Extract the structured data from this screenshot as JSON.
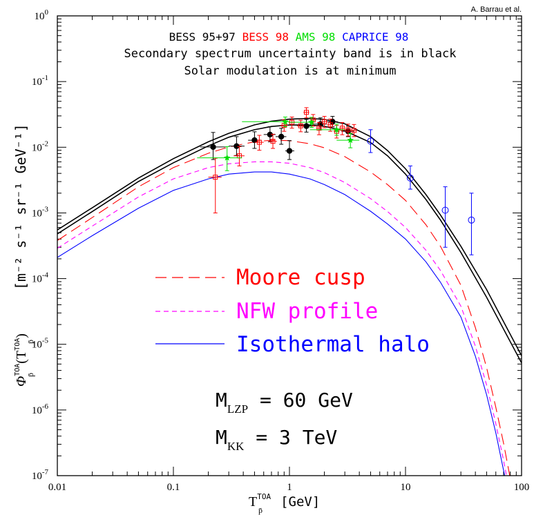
{
  "credit": "A. Barrau et al.",
  "chart_data": {
    "type": "line",
    "xscale": "log",
    "yscale": "log",
    "xlim": [
      0.01,
      100
    ],
    "ylim": [
      1e-07,
      1
    ],
    "x_ticks": [
      {
        "value": 0.01,
        "label": "0.01"
      },
      {
        "value": 0.1,
        "label": "0.1"
      },
      {
        "value": 1,
        "label": "1"
      },
      {
        "value": 10,
        "label": "10"
      },
      {
        "value": 100,
        "label": "100"
      }
    ],
    "y_ticks": [
      {
        "value": 1,
        "mant": "10",
        "exp": "0"
      },
      {
        "value": 0.1,
        "mant": "10",
        "exp": "-1"
      },
      {
        "value": 0.01,
        "mant": "10",
        "exp": "-2"
      },
      {
        "value": 0.001,
        "mant": "10",
        "exp": "-3"
      },
      {
        "value": 0.0001,
        "mant": "10",
        "exp": "-4"
      },
      {
        "value": 1e-05,
        "mant": "10",
        "exp": "-5"
      },
      {
        "value": 1e-06,
        "mant": "10",
        "exp": "-6"
      },
      {
        "value": 1e-07,
        "mant": "10",
        "exp": "-7"
      }
    ],
    "xlabel": {
      "main": "T",
      "sub": "p̄",
      "sup": "TOA",
      "unit": "[GeV]"
    },
    "ylabel": {
      "phi": "Φ",
      "sub": "p̄",
      "sup": "TOA",
      "arg": "(T",
      "arg_sub": "p̄",
      "arg_sup": "TOA",
      "arg_close": ")",
      "unit": "[m⁻² s⁻¹ sr⁻¹ GeV⁻¹]"
    },
    "experiments": [
      {
        "name": "BESS 95+97",
        "color": "#000000"
      },
      {
        "name": "BESS 98",
        "color": "#ff0000"
      },
      {
        "name": "AMS 98",
        "color": "#00dd00"
      },
      {
        "name": "CAPRICE 98",
        "color": "#0000ff"
      }
    ],
    "notes": [
      "Secondary spectrum uncertainty band is in black",
      "Solar modulation is at minimum"
    ],
    "series": [
      {
        "name": "Moore cusp",
        "color": "#ff0000",
        "dash": "long",
        "x": [
          0.01,
          0.02,
          0.05,
          0.1,
          0.2,
          0.3,
          0.5,
          0.7,
          1.0,
          1.5,
          2.0,
          3.0,
          5.0,
          7.0,
          10,
          15,
          20,
          30,
          40,
          50,
          60,
          70,
          80
        ],
        "y": [
          0.00038,
          0.00085,
          0.0025,
          0.0049,
          0.0081,
          0.0101,
          0.0121,
          0.0128,
          0.0126,
          0.0113,
          0.0098,
          0.0072,
          0.0042,
          0.0027,
          0.00155,
          0.00066,
          0.00031,
          7.9e-05,
          1.8e-05,
          4.4e-06,
          1.1e-06,
          3.1e-07,
          9e-08
        ]
      },
      {
        "name": "NFW profile",
        "color": "#ff00ff",
        "dash": "short",
        "x": [
          0.01,
          0.02,
          0.05,
          0.1,
          0.2,
          0.3,
          0.5,
          0.7,
          1.0,
          1.5,
          2.0,
          3.0,
          5.0,
          7.0,
          10,
          15,
          20,
          30,
          40,
          50,
          60,
          70,
          80
        ],
        "y": [
          0.00029,
          0.00063,
          0.00175,
          0.0033,
          0.0049,
          0.0056,
          0.006,
          0.006,
          0.0057,
          0.0049,
          0.0041,
          0.0029,
          0.00165,
          0.00105,
          0.0006,
          0.00027,
          0.000133,
          3.8e-05,
          9.4e-06,
          2.4e-06,
          6.2e-07,
          1.7e-07,
          5e-08
        ]
      },
      {
        "name": "Isothermal halo",
        "color": "#0000ff",
        "dash": "solid",
        "x": [
          0.01,
          0.02,
          0.05,
          0.1,
          0.2,
          0.3,
          0.5,
          0.7,
          1.0,
          1.5,
          2.0,
          3.0,
          5.0,
          7.0,
          10,
          15,
          20,
          30,
          40,
          50,
          60,
          70,
          80
        ],
        "y": [
          0.00021,
          0.00045,
          0.00118,
          0.0022,
          0.0033,
          0.0039,
          0.0042,
          0.0042,
          0.0039,
          0.0033,
          0.0027,
          0.0019,
          0.00106,
          0.00068,
          0.0004,
          0.00018,
          8.8e-05,
          2.6e-05,
          6.6e-06,
          1.7e-06,
          4.5e-07,
          1.2e-07,
          4e-08
        ]
      },
      {
        "name": "",
        "color": "#000000",
        "dash": "solid",
        "x": [
          0.01,
          0.02,
          0.05,
          0.1,
          0.2,
          0.3,
          0.5,
          0.7,
          1.0,
          1.5,
          2.0,
          3.0,
          5.0,
          7.0,
          10,
          15,
          20,
          30,
          50,
          100
        ],
        "y": [
          0.00055,
          0.0012,
          0.0034,
          0.0067,
          0.0121,
          0.0163,
          0.0219,
          0.0249,
          0.0268,
          0.0275,
          0.0265,
          0.0227,
          0.0145,
          0.0089,
          0.0047,
          0.0019,
          0.00093,
          0.00031,
          6.8e-05,
          6.7e-06
        ]
      },
      {
        "name": "",
        "color": "#000000",
        "dash": "solid",
        "x": [
          0.01,
          0.02,
          0.05,
          0.1,
          0.2,
          0.3,
          0.5,
          0.7,
          1.0,
          1.5,
          2.0,
          3.0,
          5.0,
          7.0,
          10,
          15,
          20,
          30,
          50,
          100
        ],
        "y": [
          0.00048,
          0.00105,
          0.003,
          0.0058,
          0.0105,
          0.0142,
          0.0185,
          0.0207,
          0.0218,
          0.0218,
          0.0208,
          0.0178,
          0.0118,
          0.0074,
          0.0039,
          0.0016,
          0.00078,
          0.00025,
          5.2e-05,
          5.2e-06
        ]
      }
    ],
    "points": [
      {
        "set": "BESS 95+97",
        "color": "#000000",
        "marker": "filled-circle",
        "x": [
          0.22,
          0.35,
          0.5,
          0.68,
          0.85,
          1.0,
          1.4,
          1.85,
          2.35,
          3.2
        ],
        "y": [
          0.0101,
          0.0104,
          0.0128,
          0.0156,
          0.0145,
          0.0088,
          0.021,
          0.0225,
          0.0245,
          0.0175
        ],
        "ylo": [
          0.0065,
          0.0075,
          0.0096,
          0.0121,
          0.0111,
          0.0065,
          0.017,
          0.0185,
          0.0205,
          0.0145
        ],
        "yhi": [
          0.0168,
          0.0145,
          0.0172,
          0.0205,
          0.0195,
          0.0126,
          0.0265,
          0.028,
          0.0295,
          0.021
        ],
        "xlo": [
          0.17,
          0.3,
          0.44,
          0.6,
          0.76,
          0.92,
          1.2,
          1.6,
          2.1,
          2.8
        ],
        "xhi": [
          0.28,
          0.41,
          0.57,
          0.76,
          0.94,
          1.1,
          1.6,
          2.1,
          2.6,
          3.6
        ]
      },
      {
        "set": "BESS 98",
        "color": "#ff0000",
        "marker": "open-square",
        "x": [
          0.23,
          0.37,
          0.55,
          0.72,
          0.9,
          1.05,
          1.25,
          1.4,
          1.6,
          1.8,
          2.0,
          2.25,
          2.55,
          2.85,
          3.2,
          3.6
        ],
        "y": [
          0.0035,
          0.0074,
          0.0119,
          0.0123,
          0.0215,
          0.024,
          0.0212,
          0.034,
          0.026,
          0.0195,
          0.0245,
          0.022,
          0.0175,
          0.0195,
          0.0185,
          0.018
        ],
        "ylo": [
          0.001,
          0.0052,
          0.009,
          0.0096,
          0.0175,
          0.0195,
          0.0172,
          0.028,
          0.021,
          0.0155,
          0.0198,
          0.0175,
          0.0138,
          0.0155,
          0.0148,
          0.0145
        ],
        "yhi": [
          0.0068,
          0.0102,
          0.0152,
          0.0158,
          0.0262,
          0.0288,
          0.0258,
          0.04,
          0.0315,
          0.0238,
          0.0295,
          0.0268,
          0.0215,
          0.0238,
          0.0225,
          0.0222
        ],
        "xlo": [
          0.2,
          0.33,
          0.5,
          0.66,
          0.83,
          0.98,
          1.16,
          1.32,
          1.5,
          1.7,
          1.9,
          2.12,
          2.4,
          2.7,
          3.0,
          3.4
        ],
        "xhi": [
          0.26,
          0.41,
          0.6,
          0.78,
          0.97,
          1.12,
          1.34,
          1.48,
          1.7,
          1.9,
          2.12,
          2.4,
          2.7,
          3.0,
          3.4,
          3.8
        ]
      },
      {
        "set": "AMS 98",
        "color": "#00dd00",
        "marker": "star",
        "x": [
          0.29,
          0.92,
          1.55,
          2.55,
          3.35
        ],
        "y": [
          0.0069,
          0.0245,
          0.024,
          0.0185,
          0.0128
        ],
        "ylo": [
          0.0044,
          0.0205,
          0.02,
          0.0152,
          0.0098
        ],
        "yhi": [
          0.0102,
          0.0288,
          0.0285,
          0.0225,
          0.0162
        ],
        "xlo": [
          0.16,
          0.39,
          1.0,
          1.5,
          2.55
        ],
        "xhi": [
          0.39,
          1.0,
          1.5,
          3.0,
          4.0
        ]
      },
      {
        "set": "CAPRICE 98",
        "color": "#0000ff",
        "marker": "open-circle",
        "x": [
          5.0,
          11.0,
          22.0,
          37.0
        ],
        "y": [
          0.0124,
          0.0034,
          0.0011,
          0.00078
        ],
        "ylo": [
          0.0083,
          0.0023,
          0.0003,
          0.00023
        ],
        "yhi": [
          0.0185,
          0.0052,
          0.0025,
          0.002
        ],
        "xlo": [
          5.0,
          11.0,
          22.0,
          37.0
        ],
        "xhi": [
          5.0,
          11.0,
          22.0,
          37.0
        ]
      }
    ],
    "legend_placement": "center-left",
    "params": [
      {
        "main": "M",
        "sub": "LZP",
        "text": " = 60 GeV"
      },
      {
        "main": "M",
        "sub": "KK",
        "text": " = 3 TeV"
      }
    ]
  }
}
